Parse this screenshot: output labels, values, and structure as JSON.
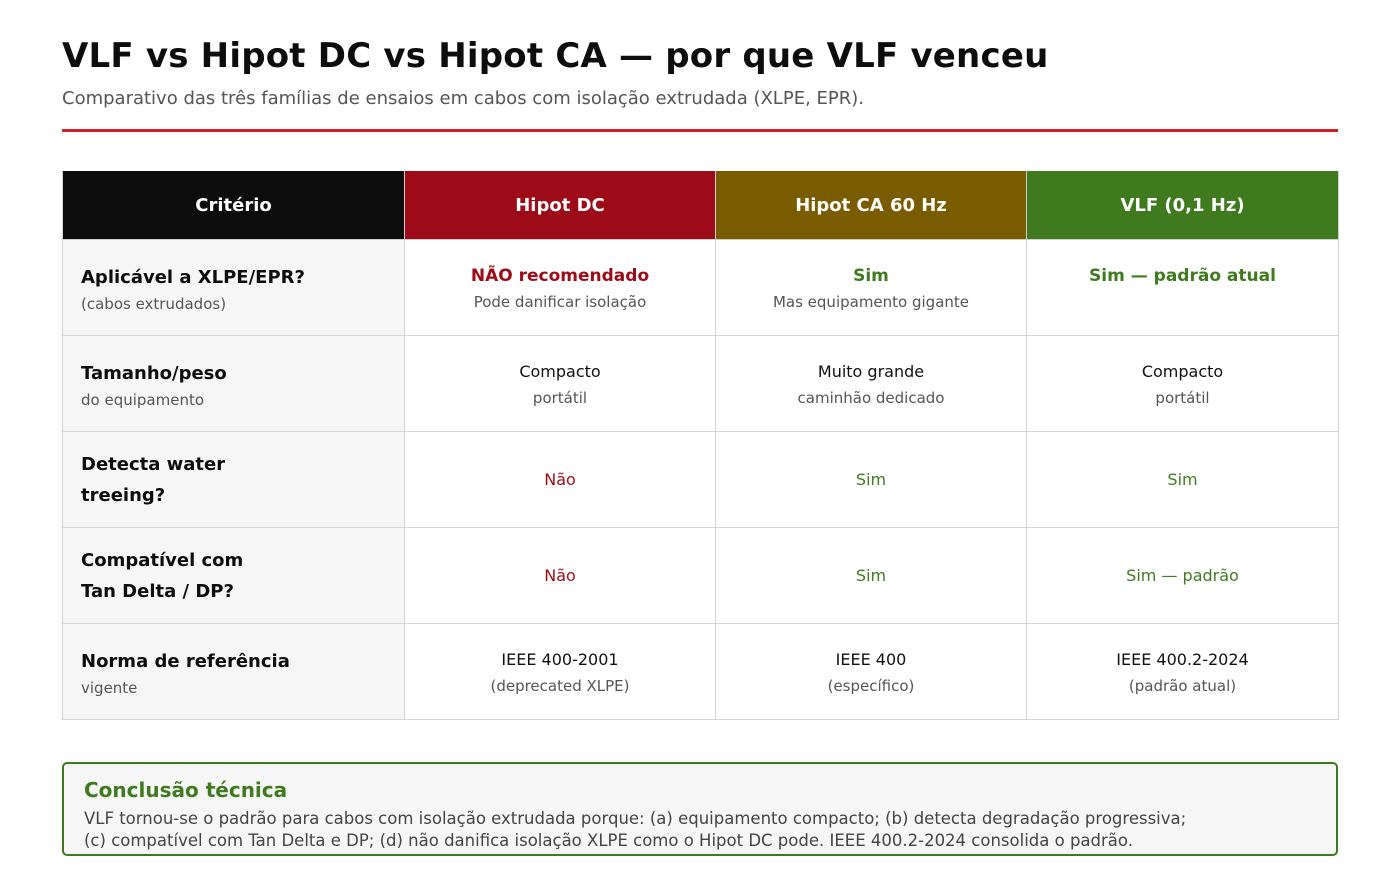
{
  "title": "VLF vs Hipot DC vs Hipot CA — por que VLF venceu",
  "subtitle": "Comparativo das três famílias de ensaios em cabos com isolação extrudada (XLPE, EPR).",
  "colors": {
    "accent_red": "#d42027",
    "header_criterio": "#0d0d0d",
    "header_dc": "#9e0b18",
    "header_ca": "#7a5c00",
    "header_vlf": "#3f7a1f",
    "negative_text": "#9e0b18",
    "positive_text": "#3f7a1f"
  },
  "table": {
    "headers": [
      "Critério",
      "Hipot DC",
      "Hipot CA 60 Hz",
      "VLF (0,1 Hz)"
    ],
    "rows": [
      {
        "criterion": "Aplicável a XLPE/EPR?",
        "criterion_sub": "(cabos extrudados)",
        "cells": [
          {
            "main": "NÃO recomendado",
            "sub": "Pode danificar isolação",
            "tone": "negative",
            "bold": true
          },
          {
            "main": "Sim",
            "sub": "Mas equipamento gigante",
            "tone": "positive",
            "bold": true
          },
          {
            "main": "Sim — padrão atual",
            "sub": "",
            "tone": "positive",
            "bold": true
          }
        ]
      },
      {
        "criterion": "Tamanho/peso",
        "criterion_sub": "do equipamento",
        "cells": [
          {
            "main": "Compacto",
            "sub": "portátil",
            "tone": "neutral",
            "bold": false
          },
          {
            "main": "Muito grande",
            "sub": "caminhão dedicado",
            "tone": "neutral",
            "bold": false
          },
          {
            "main": "Compacto",
            "sub": "portátil",
            "tone": "neutral",
            "bold": false
          }
        ]
      },
      {
        "criterion": "Detecta water treeing?",
        "criterion_sub": "",
        "cells": [
          {
            "main": "Não",
            "sub": "",
            "tone": "negative",
            "bold": false
          },
          {
            "main": "Sim",
            "sub": "",
            "tone": "positive",
            "bold": false
          },
          {
            "main": "Sim",
            "sub": "",
            "tone": "positive",
            "bold": false
          }
        ]
      },
      {
        "criterion": "Compatível com Tan Delta / DP?",
        "criterion_sub": "",
        "cells": [
          {
            "main": "Não",
            "sub": "",
            "tone": "negative",
            "bold": false
          },
          {
            "main": "Sim",
            "sub": "",
            "tone": "positive",
            "bold": false
          },
          {
            "main": "Sim — padrão",
            "sub": "",
            "tone": "positive",
            "bold": false
          }
        ]
      },
      {
        "criterion": "Norma de referência",
        "criterion_sub": "vigente",
        "cells": [
          {
            "main": "IEEE 400-2001",
            "sub": "(deprecated XLPE)",
            "tone": "neutral",
            "bold": false
          },
          {
            "main": "IEEE 400",
            "sub": "(específico)",
            "tone": "neutral",
            "bold": false
          },
          {
            "main": "IEEE 400.2-2024",
            "sub": "(padrão atual)",
            "tone": "neutral",
            "bold": false
          }
        ]
      }
    ]
  },
  "conclusion": {
    "title": "Conclusão técnica",
    "line1": "VLF tornou-se o padrão para cabos com isolação extrudada porque: (a) equipamento compacto; (b) detecta degradação progressiva;",
    "line2": "(c) compatível com Tan Delta e DP; (d) não danifica isolação XLPE como o Hipot DC pode. IEEE 400.2-2024 consolida o padrão."
  }
}
